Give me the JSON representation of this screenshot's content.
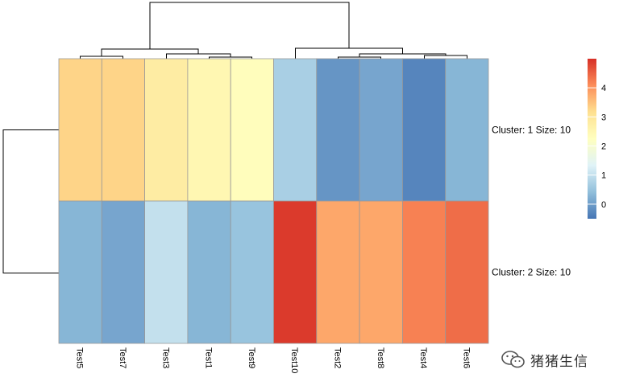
{
  "chart_data": {
    "type": "heatmap",
    "title": "",
    "columns": [
      "Test5",
      "Test7",
      "Test3",
      "Test1",
      "Test9",
      "Test10",
      "Test2",
      "Test8",
      "Test4",
      "Test6"
    ],
    "rows": [
      {
        "label": "Cluster: 1 Size: 10",
        "values": [
          3.3,
          3.3,
          2.8,
          2.5,
          2.3,
          0.7,
          -0.1,
          0.1,
          -0.3,
          0.3
        ]
      },
      {
        "label": "Cluster: 2 Size: 10",
        "values": [
          0.3,
          0.1,
          1.0,
          0.3,
          0.5,
          4.9,
          3.8,
          3.8,
          4.2,
          4.4
        ]
      }
    ],
    "color_scale": {
      "range": [
        -0.5,
        5.0
      ],
      "colors": [
        "#4575B4",
        "#91BFDB",
        "#E0F3F8",
        "#FFFFBF",
        "#FEE090",
        "#FC8D59",
        "#D73027"
      ],
      "ticks": [
        0,
        1,
        2,
        3,
        4
      ]
    },
    "column_dendrogram": true,
    "row_dendrogram": true,
    "legend_position": "right",
    "grid_color": "#999999"
  },
  "watermark": {
    "icon": "wechat-icon",
    "text": "猪猪生信"
  }
}
